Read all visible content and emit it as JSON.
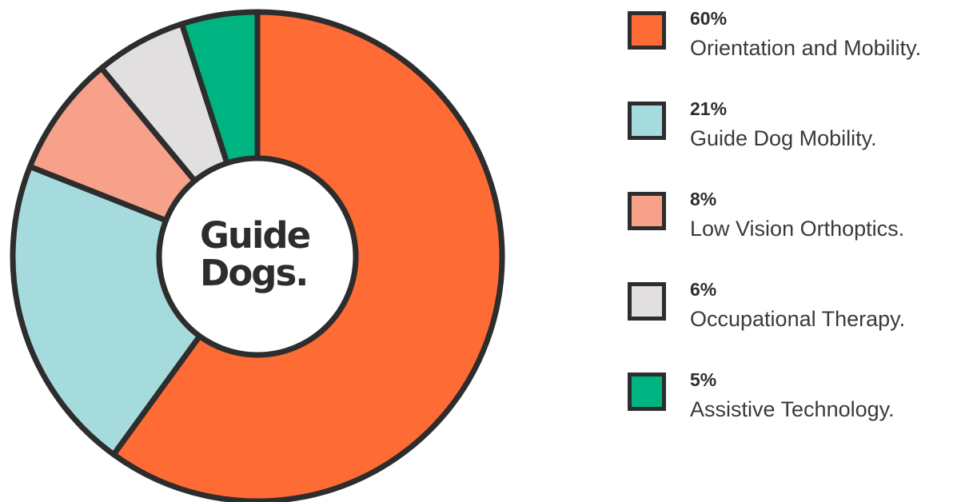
{
  "center_logo": {
    "line1": "Guide",
    "line2": "Dogs."
  },
  "chart_data": {
    "type": "pie",
    "style": "donut",
    "categories": [
      "Orientation and Mobility.",
      "Guide Dog Mobility.",
      "Low Vision Orthoptics.",
      "Occupational Therapy.",
      "Assistive Technology."
    ],
    "values": [
      60,
      21,
      8,
      6,
      5
    ],
    "value_labels": [
      "60%",
      "21%",
      "8%",
      "6%",
      "5%"
    ],
    "colors": [
      "#ff6b35",
      "#a6dbdd",
      "#f7a08a",
      "#e1dfdf",
      "#00b482"
    ],
    "outline_color": "#2d2d2d",
    "start_angle": "top",
    "direction": "clockwise",
    "legend_position": "right"
  }
}
